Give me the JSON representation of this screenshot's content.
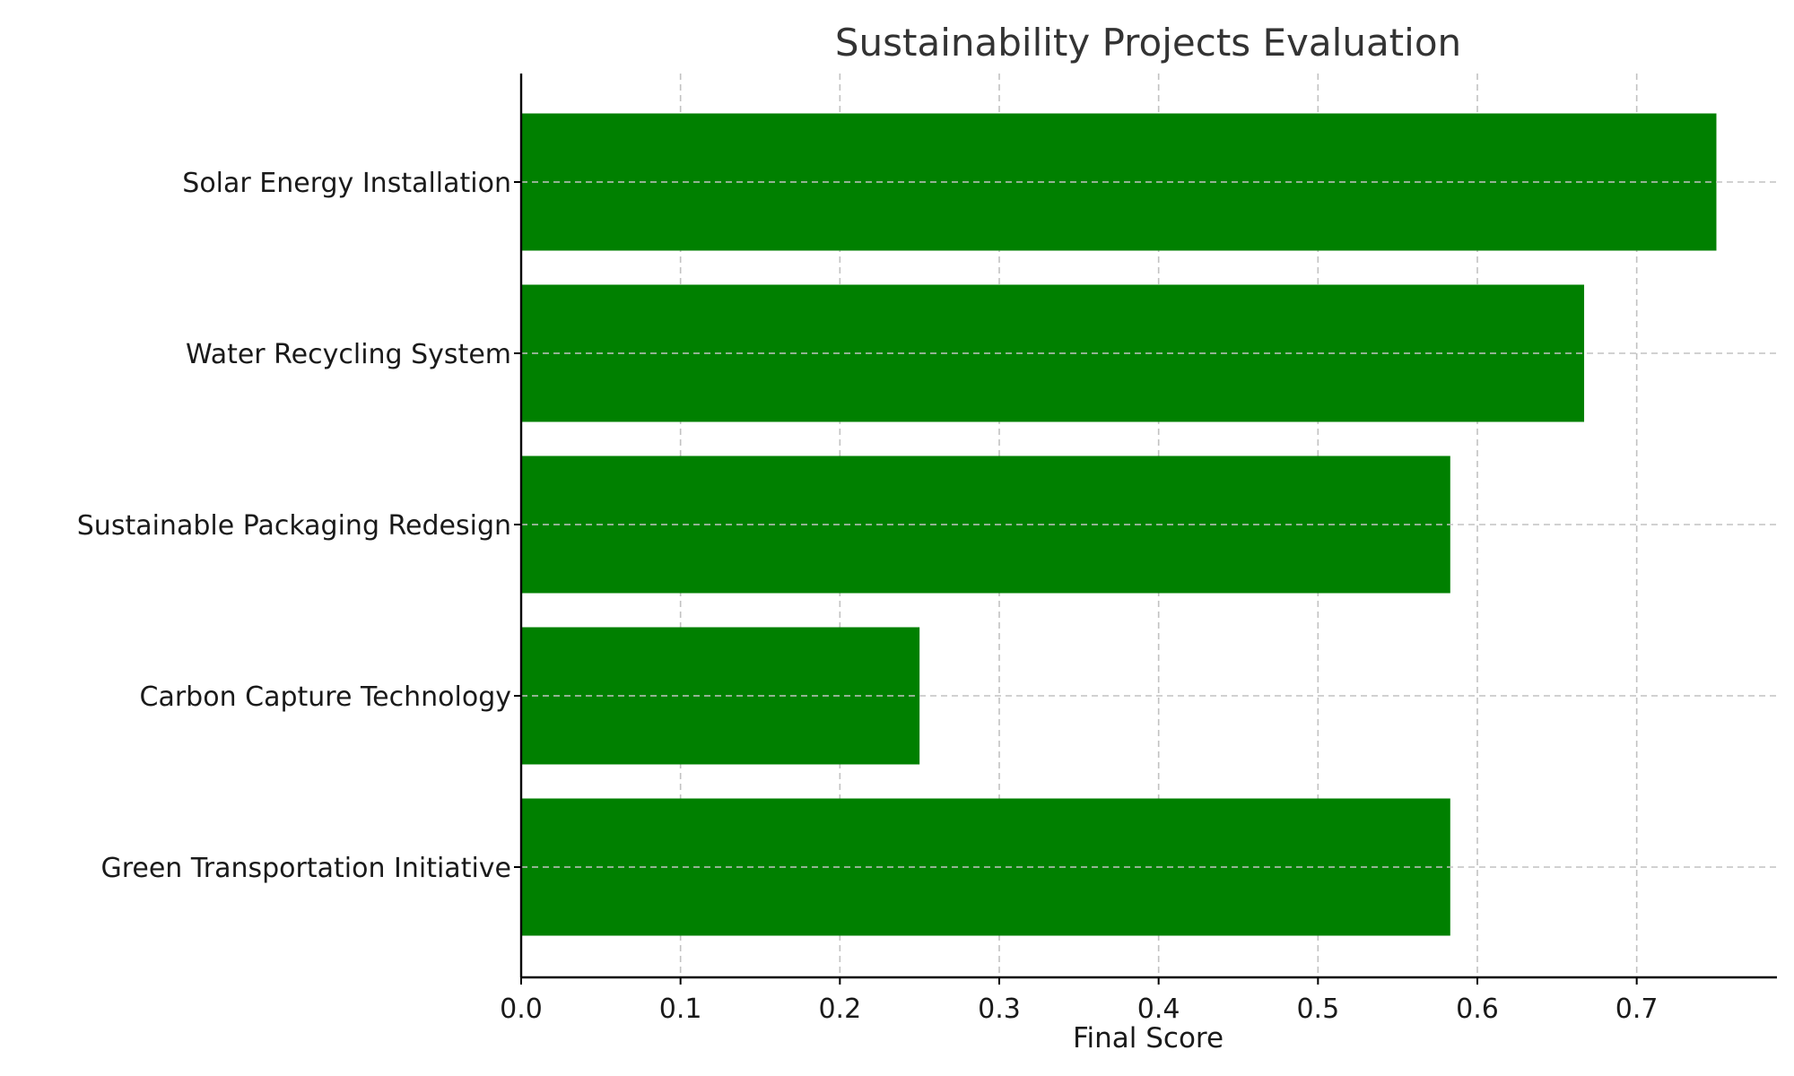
{
  "chart_data": {
    "type": "bar",
    "orientation": "horizontal",
    "title": "Sustainability Projects Evaluation",
    "xlabel": "Final Score",
    "ylabel": "",
    "categories": [
      "Green Transportation Initiative",
      "Carbon Capture Technology",
      "Sustainable Packaging Redesign",
      "Water Recycling System",
      "Solar Energy Installation"
    ],
    "values": [
      0.583,
      0.25,
      0.583,
      0.667,
      0.75
    ],
    "xlim": [
      0,
      0.788
    ],
    "xticks": [
      0.0,
      0.1,
      0.2,
      0.3,
      0.4,
      0.5,
      0.6,
      0.7
    ],
    "xtick_labels": [
      "0.0",
      "0.1",
      "0.2",
      "0.3",
      "0.4",
      "0.5",
      "0.6",
      "0.7"
    ],
    "grid": true,
    "bar_color": "#008000"
  }
}
